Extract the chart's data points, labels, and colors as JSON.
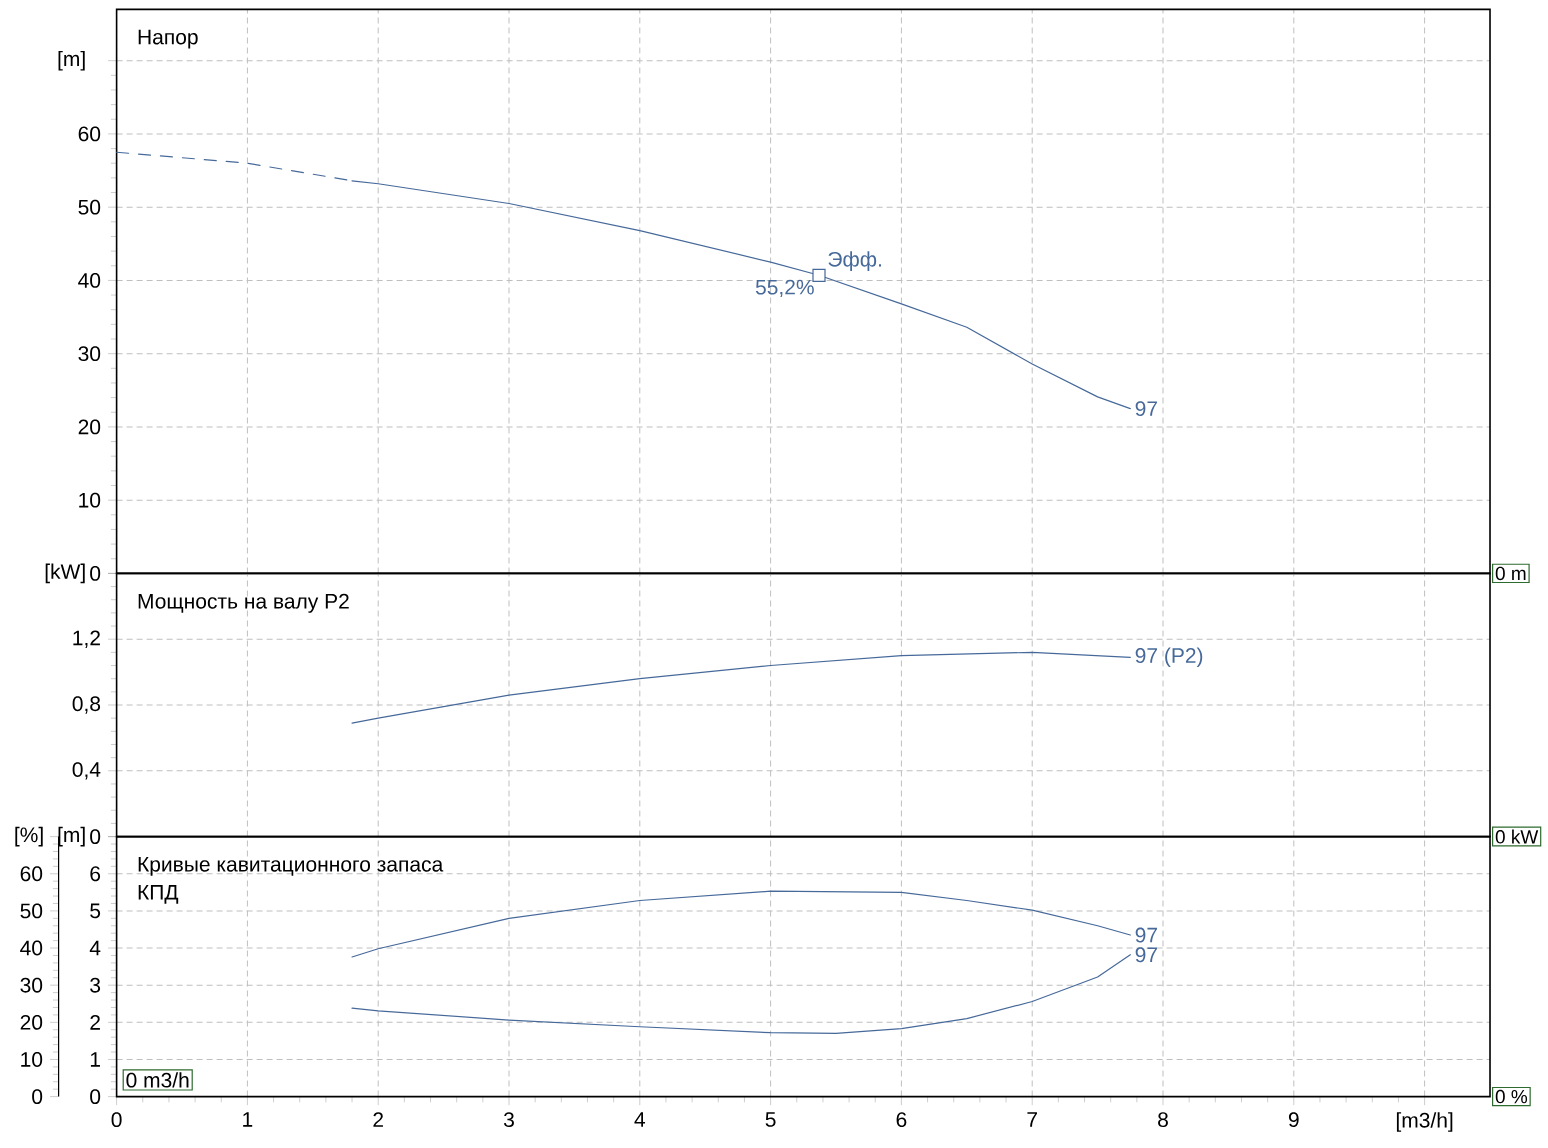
{
  "chart_data": [
    {
      "type": "line",
      "title": "Напор",
      "ylabel": "[m]",
      "xlim": [
        0,
        10.5
      ],
      "xticks": [
        0,
        1,
        2,
        3,
        4,
        5,
        6,
        7,
        8,
        9,
        10
      ],
      "ylim": [
        0,
        77
      ],
      "yticks": [
        0,
        10,
        20,
        30,
        40,
        50,
        60,
        {
          "value": 70,
          "label": null
        }
      ],
      "grid": true,
      "tick_labels": "y",
      "marker": "none",
      "series": [
        {
          "color": "#46699a",
          "line_style": "dashed",
          "x": [
            0,
            1,
            1.8
          ],
          "values": [
            57.5,
            56.0,
            53.6
          ]
        },
        {
          "name": "97",
          "color": "#46699a",
          "line_style": "solid",
          "x": [
            1.8,
            2,
            3,
            4,
            5,
            5.37,
            6,
            6.5,
            7,
            7.5,
            7.75
          ],
          "values": [
            53.6,
            53.2,
            50.5,
            46.8,
            42.5,
            40.7,
            36.8,
            33.6,
            28.6,
            24.1,
            22.5
          ]
        },
        {
          "type": "scatter",
          "marker": "square",
          "color": "#46699a",
          "x": [
            5.37
          ],
          "values": [
            40.7
          ]
        }
      ],
      "annotations": [
        {
          "text": "Эфф.",
          "x": 5.37,
          "y": 40.7
        },
        {
          "text": "55,2%",
          "x": 5.37,
          "y": 40.7
        },
        "0 m"
      ]
    },
    {
      "type": "line",
      "title": "Мощность на валу P2",
      "ylabel": "[kW]",
      "xlim": [
        0,
        10.5
      ],
      "xticks": [
        0,
        1,
        2,
        3,
        4,
        5,
        6,
        7,
        8,
        9,
        10
      ],
      "ylim": [
        0,
        1.6
      ],
      "yticks": [
        0,
        {
          "value": 0.4,
          "label": "0,4"
        },
        {
          "value": 0.8,
          "label": "0,8"
        },
        {
          "value": 1.2,
          "label": "1,2"
        },
        {
          "value": 1.6,
          "label": null
        }
      ],
      "grid": true,
      "tick_labels": "y",
      "marker": "none",
      "series": [
        {
          "name": "97 (P2)",
          "color": "#46699a",
          "line_style": "solid",
          "x": [
            1.8,
            2,
            3,
            4,
            5,
            6,
            7,
            7.75
          ],
          "values": [
            0.69,
            0.72,
            0.86,
            0.96,
            1.04,
            1.1,
            1.12,
            1.09
          ]
        }
      ],
      "annotations": [
        "0 kW"
      ]
    },
    {
      "type": "line",
      "title": "Кривые кавитационного запаса",
      "subtitle": "КПД",
      "ylabel": "[m]",
      "y2label": "[%]",
      "xlim": [
        0,
        10.5
      ],
      "xticks": [
        0,
        1,
        2,
        3,
        4,
        5,
        6,
        7,
        8,
        9,
        {
          "value": 10,
          "label": "[m3/h]"
        }
      ],
      "ylim": [
        0,
        7
      ],
      "yticks": [
        0,
        1,
        2,
        3,
        4,
        5,
        6,
        {
          "value": 7,
          "label": null
        }
      ],
      "y2lim": [
        0,
        70
      ],
      "y2ticks": [
        0,
        10,
        20,
        30,
        40,
        50,
        60,
        {
          "value": 70,
          "label": null
        }
      ],
      "grid": true,
      "marker": "none",
      "series": [
        {
          "name": "97",
          "color": "#46699a",
          "line_style": "solid",
          "axis": "y2",
          "x": [
            1.8,
            2,
            3,
            4,
            5,
            6,
            6.5,
            7,
            7.5,
            7.75
          ],
          "values": [
            37.6,
            39.8,
            48,
            52.8,
            55.3,
            55,
            52.8,
            50.2,
            46,
            43.5
          ]
        },
        {
          "name": "97",
          "color": "#46699a",
          "line_style": "solid",
          "x": [
            1.8,
            2,
            3,
            4,
            5,
            5.5,
            6,
            6.5,
            7,
            7.5,
            7.75
          ],
          "values": [
            2.38,
            2.31,
            2.06,
            1.88,
            1.72,
            1.7,
            1.83,
            2.1,
            2.56,
            3.22,
            3.82
          ]
        }
      ],
      "annotations": [
        "0 %",
        "0 m3/h"
      ]
    }
  ]
}
